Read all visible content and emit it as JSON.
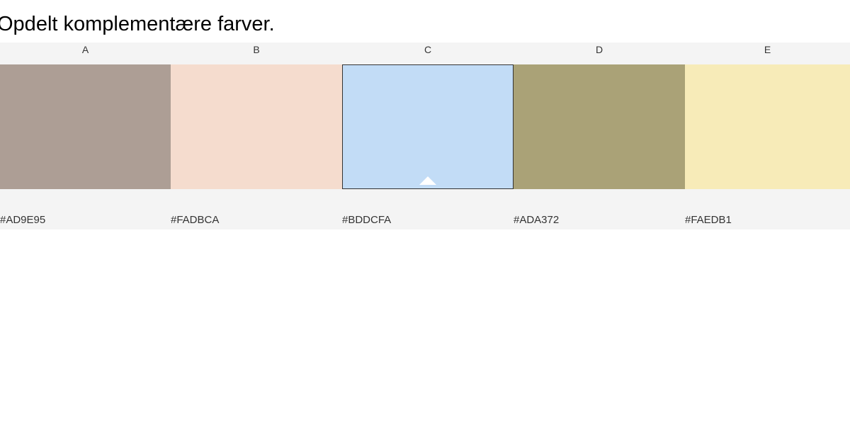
{
  "title": "Opdelt komplementære farver.",
  "palette": {
    "swatches": [
      {
        "label": "A",
        "hex": "#AD9E95",
        "color": "#AD9E95"
      },
      {
        "label": "B",
        "hex": "#FADBCA",
        "color": "#F5DCCE"
      },
      {
        "label": "C",
        "hex": "#BDDCFA",
        "color": "#C2DCF6",
        "selected": true
      },
      {
        "label": "D",
        "hex": "#ADA372",
        "color": "#AAA277"
      },
      {
        "label": "E",
        "hex": "#FAEDB1",
        "color": "#F7EBB8"
      }
    ],
    "selected_icon": "caret-up-icon"
  }
}
